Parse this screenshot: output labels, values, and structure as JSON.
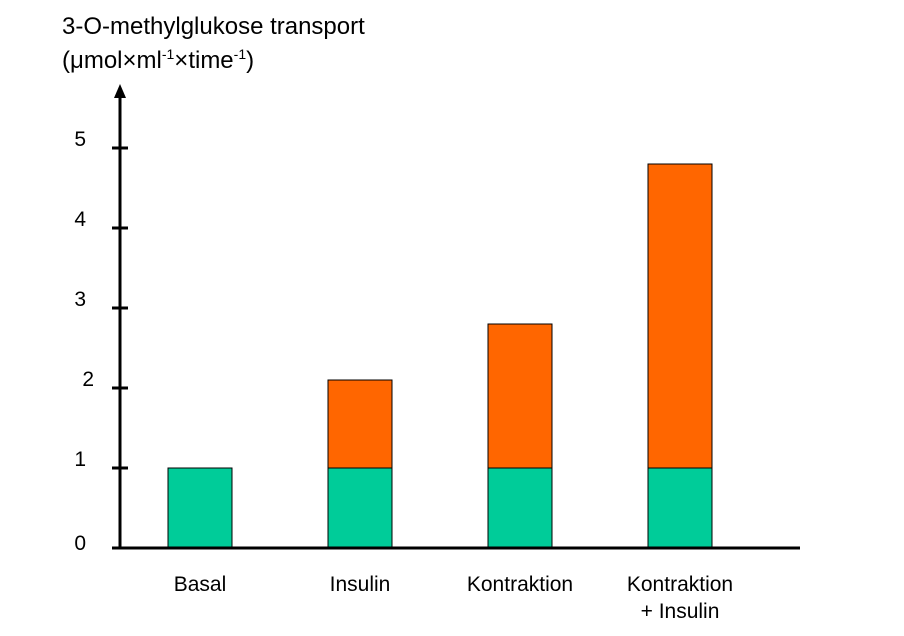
{
  "chart_data": {
    "type": "bar",
    "stacked": true,
    "ylabel": {
      "line1": "3-O-methylglukose transport",
      "line2": [
        "(",
        "μ",
        "mol",
        "×",
        "ml",
        "-1",
        "×",
        "time",
        "-1",
        ")"
      ]
    },
    "ylim": [
      0,
      5
    ],
    "yticks": [
      "0",
      "1",
      "2",
      "3",
      "4",
      "5"
    ],
    "grid": false,
    "legend": "none",
    "categories": [
      {
        "lines": [
          "Basal"
        ]
      },
      {
        "lines": [
          "Insulin"
        ]
      },
      {
        "lines": [
          "Kontraktion"
        ]
      },
      {
        "lines": [
          "Kontraktion",
          "+ Insulin"
        ]
      }
    ],
    "series": [
      {
        "color": "#00CC99",
        "values": [
          1.0,
          1.0,
          1.0,
          1.0
        ]
      },
      {
        "color": "#FF6600",
        "values": [
          0.0,
          1.1,
          1.8,
          3.8
        ]
      }
    ]
  }
}
